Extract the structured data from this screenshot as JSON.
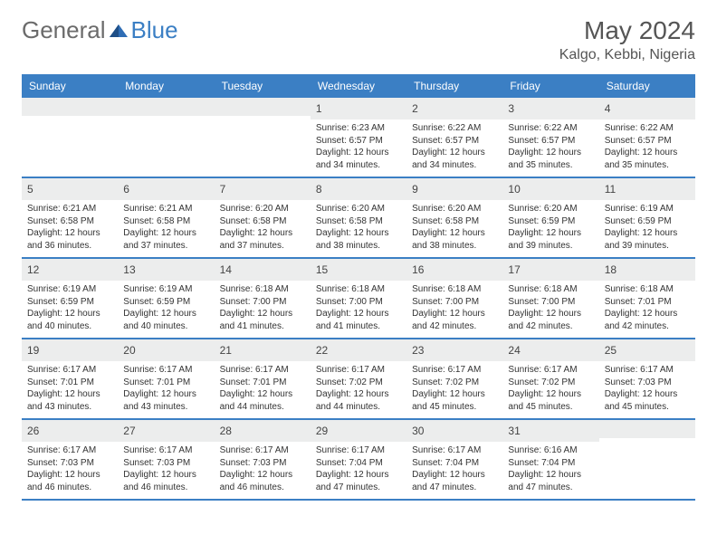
{
  "brand": {
    "text1": "General",
    "text2": "Blue"
  },
  "title": "May 2024",
  "location": "Kalgo, Kebbi, Nigeria",
  "colors": {
    "header_bg": "#3b7fc4",
    "header_text": "#ffffff",
    "daynum_bg": "#eceded",
    "body_text": "#333333",
    "title_text": "#555555",
    "logo_gray": "#6b6b6b",
    "logo_blue": "#3b7fc4",
    "border": "#3b7fc4"
  },
  "day_names": [
    "Sunday",
    "Monday",
    "Tuesday",
    "Wednesday",
    "Thursday",
    "Friday",
    "Saturday"
  ],
  "weeks": [
    [
      null,
      null,
      null,
      {
        "n": "1",
        "sr": "6:23 AM",
        "ss": "6:57 PM",
        "dl": "12 hours and 34 minutes."
      },
      {
        "n": "2",
        "sr": "6:22 AM",
        "ss": "6:57 PM",
        "dl": "12 hours and 34 minutes."
      },
      {
        "n": "3",
        "sr": "6:22 AM",
        "ss": "6:57 PM",
        "dl": "12 hours and 35 minutes."
      },
      {
        "n": "4",
        "sr": "6:22 AM",
        "ss": "6:57 PM",
        "dl": "12 hours and 35 minutes."
      }
    ],
    [
      {
        "n": "5",
        "sr": "6:21 AM",
        "ss": "6:58 PM",
        "dl": "12 hours and 36 minutes."
      },
      {
        "n": "6",
        "sr": "6:21 AM",
        "ss": "6:58 PM",
        "dl": "12 hours and 37 minutes."
      },
      {
        "n": "7",
        "sr": "6:20 AM",
        "ss": "6:58 PM",
        "dl": "12 hours and 37 minutes."
      },
      {
        "n": "8",
        "sr": "6:20 AM",
        "ss": "6:58 PM",
        "dl": "12 hours and 38 minutes."
      },
      {
        "n": "9",
        "sr": "6:20 AM",
        "ss": "6:58 PM",
        "dl": "12 hours and 38 minutes."
      },
      {
        "n": "10",
        "sr": "6:20 AM",
        "ss": "6:59 PM",
        "dl": "12 hours and 39 minutes."
      },
      {
        "n": "11",
        "sr": "6:19 AM",
        "ss": "6:59 PM",
        "dl": "12 hours and 39 minutes."
      }
    ],
    [
      {
        "n": "12",
        "sr": "6:19 AM",
        "ss": "6:59 PM",
        "dl": "12 hours and 40 minutes."
      },
      {
        "n": "13",
        "sr": "6:19 AM",
        "ss": "6:59 PM",
        "dl": "12 hours and 40 minutes."
      },
      {
        "n": "14",
        "sr": "6:18 AM",
        "ss": "7:00 PM",
        "dl": "12 hours and 41 minutes."
      },
      {
        "n": "15",
        "sr": "6:18 AM",
        "ss": "7:00 PM",
        "dl": "12 hours and 41 minutes."
      },
      {
        "n": "16",
        "sr": "6:18 AM",
        "ss": "7:00 PM",
        "dl": "12 hours and 42 minutes."
      },
      {
        "n": "17",
        "sr": "6:18 AM",
        "ss": "7:00 PM",
        "dl": "12 hours and 42 minutes."
      },
      {
        "n": "18",
        "sr": "6:18 AM",
        "ss": "7:01 PM",
        "dl": "12 hours and 42 minutes."
      }
    ],
    [
      {
        "n": "19",
        "sr": "6:17 AM",
        "ss": "7:01 PM",
        "dl": "12 hours and 43 minutes."
      },
      {
        "n": "20",
        "sr": "6:17 AM",
        "ss": "7:01 PM",
        "dl": "12 hours and 43 minutes."
      },
      {
        "n": "21",
        "sr": "6:17 AM",
        "ss": "7:01 PM",
        "dl": "12 hours and 44 minutes."
      },
      {
        "n": "22",
        "sr": "6:17 AM",
        "ss": "7:02 PM",
        "dl": "12 hours and 44 minutes."
      },
      {
        "n": "23",
        "sr": "6:17 AM",
        "ss": "7:02 PM",
        "dl": "12 hours and 45 minutes."
      },
      {
        "n": "24",
        "sr": "6:17 AM",
        "ss": "7:02 PM",
        "dl": "12 hours and 45 minutes."
      },
      {
        "n": "25",
        "sr": "6:17 AM",
        "ss": "7:03 PM",
        "dl": "12 hours and 45 minutes."
      }
    ],
    [
      {
        "n": "26",
        "sr": "6:17 AM",
        "ss": "7:03 PM",
        "dl": "12 hours and 46 minutes."
      },
      {
        "n": "27",
        "sr": "6:17 AM",
        "ss": "7:03 PM",
        "dl": "12 hours and 46 minutes."
      },
      {
        "n": "28",
        "sr": "6:17 AM",
        "ss": "7:03 PM",
        "dl": "12 hours and 46 minutes."
      },
      {
        "n": "29",
        "sr": "6:17 AM",
        "ss": "7:04 PM",
        "dl": "12 hours and 47 minutes."
      },
      {
        "n": "30",
        "sr": "6:17 AM",
        "ss": "7:04 PM",
        "dl": "12 hours and 47 minutes."
      },
      {
        "n": "31",
        "sr": "6:16 AM",
        "ss": "7:04 PM",
        "dl": "12 hours and 47 minutes."
      },
      null
    ]
  ],
  "labels": {
    "sunrise": "Sunrise:",
    "sunset": "Sunset:",
    "daylight": "Daylight:"
  }
}
